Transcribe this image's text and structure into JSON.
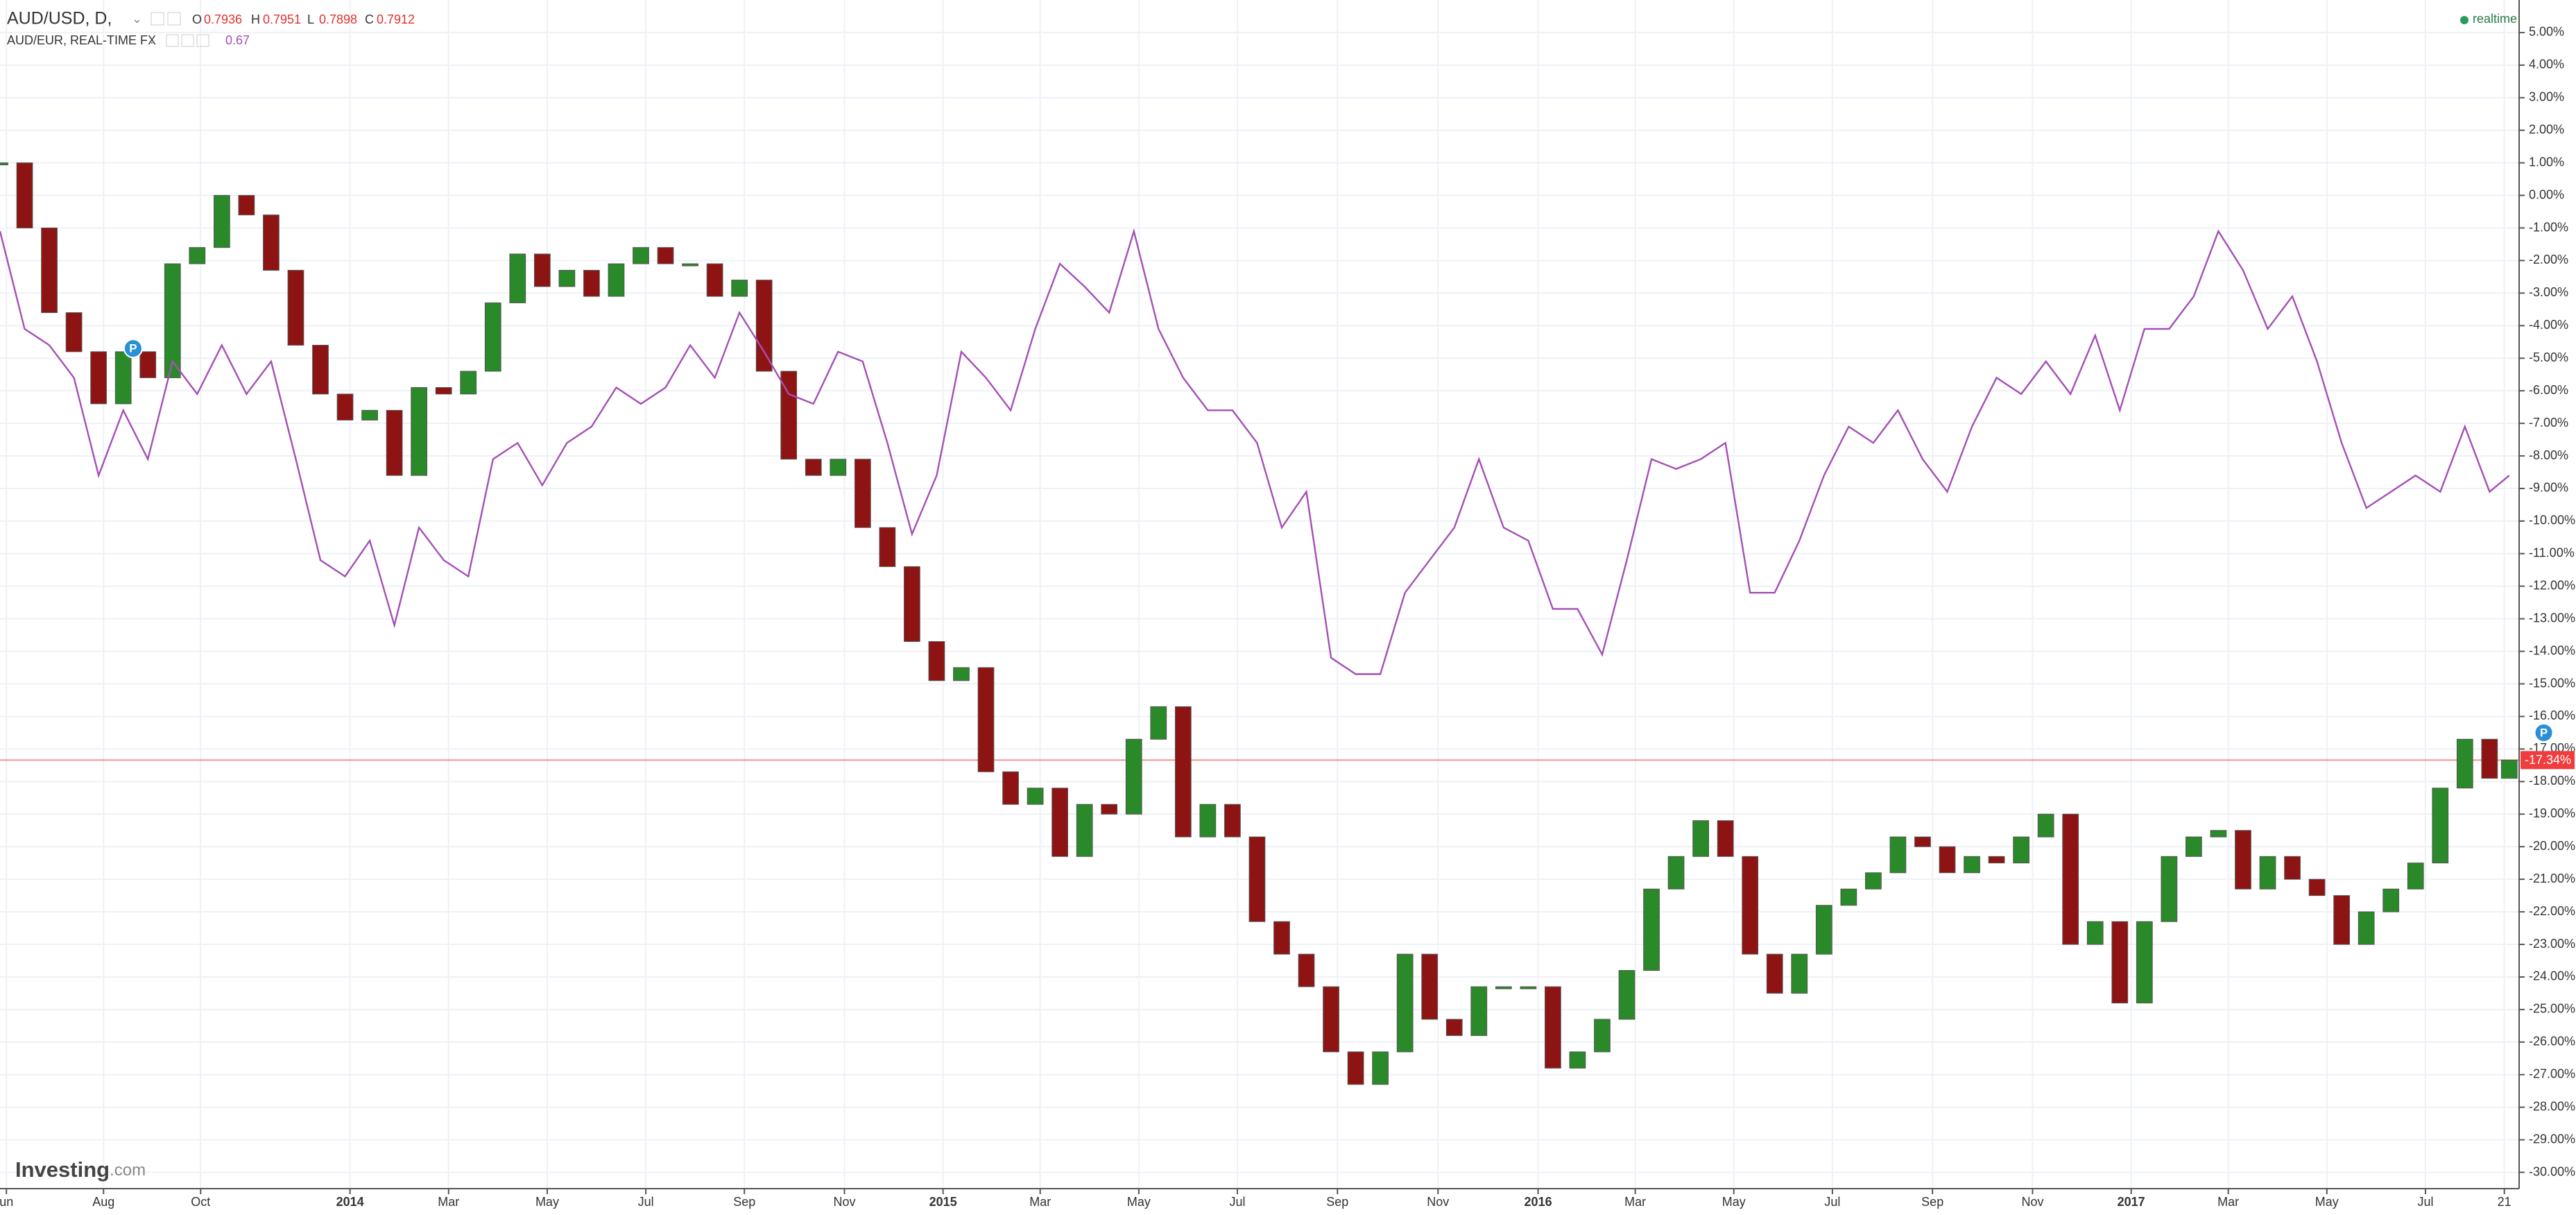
{
  "chart_data": {
    "type": "candlestick",
    "header": {
      "ohlc": [
        {
          "label": "O",
          "value": 0.7936
        },
        {
          "label": "H",
          "value": 0.7951
        },
        {
          "label": "L",
          "value": 0.7898
        },
        {
          "label": "C",
          "value": 0.7912
        }
      ],
      "compare_value": 0.67,
      "status": "realtime"
    },
    "brand": [
      "Investing",
      ".com"
    ],
    "x": [
      0,
      0.5,
      1,
      1.5,
      2,
      2.5,
      3,
      3.5,
      4,
      4.5,
      5,
      5.5,
      6,
      6.5,
      7,
      7.5,
      8,
      8.5,
      9,
      9.5,
      10,
      10.5,
      11,
      11.5,
      12,
      12.5,
      13,
      13.5,
      14,
      14.5,
      15,
      15.5,
      16,
      16.5,
      17,
      17.5,
      18,
      18.5,
      19,
      19.5,
      20,
      20.5,
      21,
      21.5,
      22,
      22.5,
      23,
      23.5,
      24,
      24.5,
      25,
      25.5,
      26,
      26.5,
      27,
      27.5,
      28,
      28.5,
      29,
      29.5,
      30,
      30.5,
      31,
      31.5,
      32,
      32.5,
      33,
      33.5,
      34,
      34.5,
      35,
      35.5,
      36,
      36.5,
      37,
      37.5,
      38,
      38.5,
      39,
      39.5,
      40,
      40.5,
      41,
      41.5,
      42,
      42.5,
      43,
      43.5,
      44,
      44.5,
      45,
      45.5,
      46,
      46.5,
      47,
      47.5,
      48,
      48.5,
      49,
      49.5,
      50,
      50.5,
      50.9
    ],
    "series": [
      {
        "name": "AUD/USD, D,",
        "up_color": "#2a8a2a",
        "down_color": "#8e1414",
        "values": [
          1,
          -1,
          -3.6,
          -4.8,
          -6.4,
          -4.8,
          -5.6,
          -2.1,
          -1.6,
          0,
          -0.6,
          -2.3,
          -4.6,
          -6.1,
          -6.9,
          -6.6,
          -8.6,
          -5.9,
          -6.1,
          -5.4,
          -3.3,
          -1.8,
          -2.8,
          -2.3,
          -3.1,
          -2.1,
          -1.6,
          -2.1,
          -2.1,
          -3.1,
          -2.6,
          -5.4,
          -8.1,
          -8.6,
          -8.1,
          -10.2,
          -11.4,
          -13.7,
          -14.9,
          -14.5,
          -17.7,
          -18.7,
          -18.2,
          -20.3,
          -18.7,
          -19,
          -16.7,
          -15.7,
          -19.7,
          -18.7,
          -19.7,
          -22.3,
          -23.3,
          -24.3,
          -26.3,
          -27.3,
          -26.3,
          -23.3,
          -25.3,
          -25.8,
          -24.3,
          -24.3,
          -24.3,
          -26.8,
          -26.3,
          -25.3,
          -23.8,
          -21.3,
          -20.3,
          -19.2,
          -20.3,
          -23.3,
          -24.5,
          -23.3,
          -21.8,
          -21.3,
          -20.8,
          -19.7,
          -20,
          -20.8,
          -20.3,
          -20.5,
          -19.7,
          -19,
          -23,
          -22.3,
          -24.8,
          -22.3,
          -20.3,
          -19.7,
          -19.5,
          -21.3,
          -20.3,
          -21,
          -21.5,
          -23,
          -22,
          -21.3,
          -20.5,
          -18.2,
          -16.7,
          -17.9,
          -17.34
        ]
      },
      {
        "name": "AUD/EUR, REAL-TIME FX",
        "type": "line",
        "color": "#a44fb5",
        "values": [
          -1.1,
          -4.1,
          -4.6,
          -5.6,
          -8.6,
          -6.6,
          -8.1,
          -5.1,
          -6.1,
          -4.6,
          -6.1,
          -5.1,
          -8.1,
          -11.2,
          -11.7,
          -10.6,
          -13.2,
          -10.2,
          -11.2,
          -11.7,
          -8.1,
          -7.6,
          -8.9,
          -7.6,
          -7.1,
          -5.9,
          -6.4,
          -5.9,
          -4.6,
          -5.6,
          -3.6,
          -4.8,
          -6.1,
          -6.4,
          -4.8,
          -5.1,
          -7.6,
          -10.4,
          -8.6,
          -4.8,
          -5.6,
          -6.6,
          -4.1,
          -2.1,
          -2.8,
          -3.6,
          -1.1,
          -4.1,
          -5.6,
          -6.6,
          -6.6,
          -7.6,
          -10.2,
          -9.1,
          -14.2,
          -14.7,
          -14.7,
          -12.2,
          -11.2,
          -10.2,
          -8.1,
          -10.2,
          -10.6,
          -12.7,
          -12.7,
          -14.1,
          -11.2,
          -8.1,
          -8.4,
          -8.1,
          -7.6,
          -12.2,
          -12.2,
          -10.6,
          -8.6,
          -7.1,
          -7.6,
          -6.6,
          -8.1,
          -9.1,
          -7.1,
          -5.6,
          -6.1,
          -5.1,
          -6.1,
          -4.3,
          -6.6,
          -4.1,
          -4.1,
          -3.1,
          -1.1,
          -2.3,
          -4.1,
          -3.1,
          -5.1,
          -7.6,
          -9.6,
          -9.1,
          -8.6,
          -9.1,
          -7.1,
          -9.1,
          -8.6
        ]
      }
    ],
    "current_value": {
      "value": -17.34,
      "label": "-17.34%",
      "color": "#f03c3c"
    },
    "markers": [
      {
        "label": "P",
        "x": 2.7,
        "y": -4.7
      },
      {
        "label": "P",
        "x": 51.6,
        "y": -16.5
      }
    ],
    "xlim": [
      0,
      51.1
    ],
    "xticks": [
      {
        "value": 0.13,
        "label": "un"
      },
      {
        "value": 2.1,
        "label": "Aug"
      },
      {
        "value": 4.07,
        "label": "Oct"
      },
      {
        "value": 7.1,
        "label": "2014"
      },
      {
        "value": 9.1,
        "label": "Mar"
      },
      {
        "value": 11.1,
        "label": "May"
      },
      {
        "value": 13.1,
        "label": "Jul"
      },
      {
        "value": 15.1,
        "label": "Sep"
      },
      {
        "value": 17.13,
        "label": "Nov"
      },
      {
        "value": 19.13,
        "label": "2015"
      },
      {
        "value": 21.1,
        "label": "Mar"
      },
      {
        "value": 23.1,
        "label": "May"
      },
      {
        "value": 25.1,
        "label": "Jul"
      },
      {
        "value": 27.13,
        "label": "Sep"
      },
      {
        "value": 29.17,
        "label": "Nov"
      },
      {
        "value": 31.2,
        "label": "2016"
      },
      {
        "value": 33.17,
        "label": "Mar"
      },
      {
        "value": 35.17,
        "label": "May"
      },
      {
        "value": 37.17,
        "label": "Jul"
      },
      {
        "value": 39.2,
        "label": "Sep"
      },
      {
        "value": 41.23,
        "label": "Nov"
      },
      {
        "value": 43.23,
        "label": "2017"
      },
      {
        "value": 45.2,
        "label": "Mar"
      },
      {
        "value": 47.2,
        "label": "May"
      },
      {
        "value": 49.2,
        "label": "Jul"
      },
      {
        "value": 50.8,
        "label": "21"
      }
    ],
    "ylim": [
      -30.5,
      6.0
    ],
    "yticks": [
      {
        "value": 5,
        "label": "5.00%"
      },
      {
        "value": 4,
        "label": "4.00%"
      },
      {
        "value": 3,
        "label": "3.00%"
      },
      {
        "value": 2,
        "label": "2.00%"
      },
      {
        "value": 1,
        "label": "1.00%"
      },
      {
        "value": 0,
        "label": "0.00%"
      },
      {
        "value": -1,
        "label": "-1.00%"
      },
      {
        "value": -2,
        "label": "-2.00%"
      },
      {
        "value": -3,
        "label": "-3.00%"
      },
      {
        "value": -4,
        "label": "-4.00%"
      },
      {
        "value": -5,
        "label": "-5.00%"
      },
      {
        "value": -6,
        "label": "-6.00%"
      },
      {
        "value": -7,
        "label": "-7.00%"
      },
      {
        "value": -8,
        "label": "-8.00%"
      },
      {
        "value": -9,
        "label": "-9.00%"
      },
      {
        "value": -10,
        "label": "-10.00%"
      },
      {
        "value": -11,
        "label": "-11.00%"
      },
      {
        "value": -12,
        "label": "-12.00%"
      },
      {
        "value": -13,
        "label": "-13.00%"
      },
      {
        "value": -14,
        "label": "-14.00%"
      },
      {
        "value": -15,
        "label": "-15.00%"
      },
      {
        "value": -16,
        "label": "-16.00%"
      },
      {
        "value": -17,
        "label": "-17.00%"
      },
      {
        "value": -18,
        "label": "-18.00%"
      },
      {
        "value": -19,
        "label": "-19.00%"
      },
      {
        "value": -20,
        "label": "-20.00%"
      },
      {
        "value": -21,
        "label": "-21.00%"
      },
      {
        "value": -22,
        "label": "-22.00%"
      },
      {
        "value": -23,
        "label": "-23.00%"
      },
      {
        "value": -24,
        "label": "-24.00%"
      },
      {
        "value": -25,
        "label": "-25.00%"
      },
      {
        "value": -26,
        "label": "-26.00%"
      },
      {
        "value": -27,
        "label": "-27.00%"
      },
      {
        "value": -28,
        "label": "-28.00%"
      },
      {
        "value": -29,
        "label": "-29.00%"
      },
      {
        "value": -30,
        "label": "-30.00%"
      }
    ],
    "grid": true
  }
}
